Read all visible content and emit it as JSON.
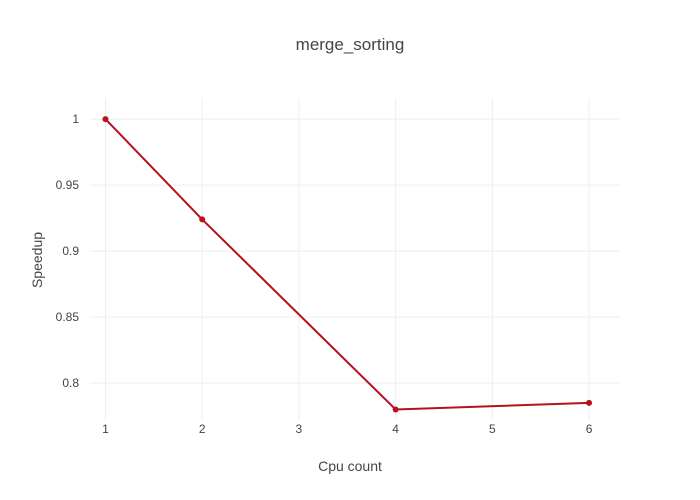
{
  "chart_data": {
    "type": "line",
    "title": "merge_sorting",
    "xlabel": "Cpu count",
    "ylabel": "Speedup",
    "x_ticks": [
      1,
      2,
      3,
      4,
      5,
      6
    ],
    "y_ticks": [
      0.8,
      0.85,
      0.9,
      0.95,
      1
    ],
    "y_tick_labels": [
      "0.8",
      "0.85",
      "0.9",
      "0.95",
      "1"
    ],
    "xlim": [
      0.84,
      6.32
    ],
    "ylim": [
      0.772,
      1.016
    ],
    "grid": true,
    "series": [
      {
        "color": "#b5121b",
        "x": [
          1,
          2,
          4,
          6
        ],
        "y": [
          1.0,
          0.924,
          0.78,
          0.785
        ]
      }
    ]
  }
}
